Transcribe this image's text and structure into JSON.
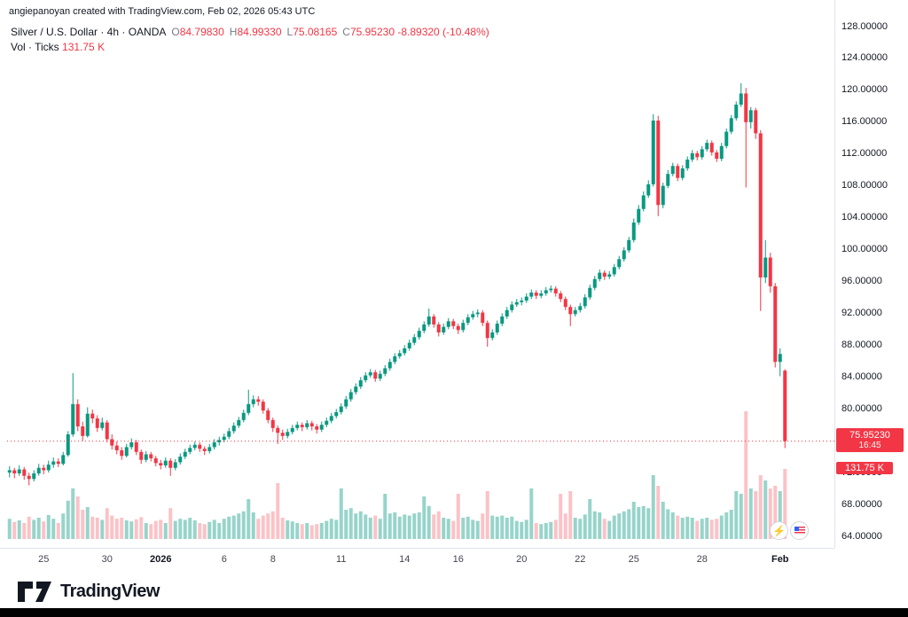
{
  "attribution": "angiepanoyan created with TradingView.com, Feb 02, 2026 05:43 UTC",
  "legend": {
    "symbol": "Silver / U.S. Dollar · 4h · OANDA",
    "ohlc": {
      "o_label": "O",
      "o": "84.79830",
      "h_label": "H",
      "h": "84.99330",
      "l_label": "L",
      "l": "75.08165",
      "c_label": "C",
      "c": "75.95230",
      "change": "-8.89320 (-10.48%)"
    },
    "volume_label": "Vol · Ticks",
    "volume_value": "131.75 K"
  },
  "price_badge": {
    "price": "75.95230",
    "countdown": "16:45"
  },
  "volume_badge": "131.75 K",
  "footer": {
    "brand": "TradingView"
  },
  "colors": {
    "up": "#089981",
    "down": "#f23645",
    "vol_up": "rgba(8,153,129,0.42)",
    "vol_down": "rgba(242,54,69,0.30)",
    "accent_red": "#f23645"
  },
  "price_scale": {
    "labels": [
      {
        "text": "128.00000",
        "value": 128
      },
      {
        "text": "124.00000",
        "value": 124
      },
      {
        "text": "120.00000",
        "value": 120
      },
      {
        "text": "116.00000",
        "value": 116
      },
      {
        "text": "112.00000",
        "value": 112
      },
      {
        "text": "108.00000",
        "value": 108
      },
      {
        "text": "104.00000",
        "value": 104
      },
      {
        "text": "100.00000",
        "value": 100
      },
      {
        "text": "96.00000",
        "value": 96
      },
      {
        "text": "92.00000",
        "value": 92
      },
      {
        "text": "88.00000",
        "value": 88
      },
      {
        "text": "84.00000",
        "value": 84
      },
      {
        "text": "80.00000",
        "value": 80
      },
      {
        "text": "76.00000",
        "value": 76
      },
      {
        "text": "72.00000",
        "value": 72
      },
      {
        "text": "68.00000",
        "value": 68
      },
      {
        "text": "64.00000",
        "value": 64
      }
    ]
  },
  "time_axis": {
    "labels": [
      {
        "t": "25",
        "i": 7,
        "major": false
      },
      {
        "t": "30",
        "i": 20,
        "major": false
      },
      {
        "t": "2026",
        "i": 31,
        "major": true
      },
      {
        "t": "6",
        "i": 44,
        "major": false
      },
      {
        "t": "8",
        "i": 54,
        "major": false
      },
      {
        "t": "11",
        "i": 68,
        "major": false
      },
      {
        "t": "14",
        "i": 81,
        "major": false
      },
      {
        "t": "16",
        "i": 92,
        "major": false
      },
      {
        "t": "20",
        "i": 105,
        "major": false
      },
      {
        "t": "22",
        "i": 117,
        "major": false
      },
      {
        "t": "25",
        "i": 128,
        "major": false
      },
      {
        "t": "28",
        "i": 142,
        "major": false
      },
      {
        "t": "Feb",
        "i": 158,
        "major": true
      }
    ]
  },
  "chart_data": {
    "type": "candlestick",
    "title": "Silver / U.S. Dollar · 4h · OANDA",
    "y_range": [
      64,
      128
    ],
    "y_step": 4,
    "grid": false,
    "volume_pane": true,
    "volume_max_k": 250,
    "last_close": 75.9523,
    "dotted_line_price": 75.9523,
    "last_candle": {
      "o": 84.7983,
      "h": 84.9933,
      "l": 75.08165,
      "c": 75.9523,
      "change": -8.8932,
      "change_pct": -10.48,
      "volume_k": 131.75
    },
    "candles": [
      [
        72.0,
        72.8,
        71.4,
        72.3,
        38
      ],
      [
        72.3,
        72.6,
        71.3,
        71.9,
        32
      ],
      [
        71.9,
        72.9,
        71.6,
        72.4,
        35
      ],
      [
        72.4,
        72.7,
        71.1,
        71.6,
        30
      ],
      [
        71.6,
        72.0,
        70.4,
        71.2,
        42
      ],
      [
        71.2,
        72.3,
        70.9,
        71.9,
        36
      ],
      [
        71.9,
        73.1,
        71.6,
        72.6,
        40
      ],
      [
        72.6,
        73.0,
        71.8,
        72.3,
        33
      ],
      [
        72.3,
        73.5,
        72.0,
        73.0,
        45
      ],
      [
        73.0,
        73.9,
        72.6,
        73.4,
        38
      ],
      [
        73.4,
        73.8,
        72.7,
        73.1,
        30
      ],
      [
        73.1,
        74.6,
        72.9,
        74.2,
        48
      ],
      [
        74.2,
        77.2,
        74.0,
        76.8,
        72
      ],
      [
        76.8,
        84.5,
        76.5,
        80.6,
        95
      ],
      [
        80.6,
        81.2,
        77.2,
        77.8,
        80
      ],
      [
        77.8,
        78.4,
        76.0,
        76.6,
        55
      ],
      [
        76.6,
        80.2,
        76.4,
        79.4,
        60
      ],
      [
        79.4,
        79.9,
        78.2,
        78.8,
        42
      ],
      [
        78.8,
        79.2,
        77.1,
        77.6,
        40
      ],
      [
        77.6,
        78.9,
        77.3,
        78.3,
        36
      ],
      [
        78.3,
        78.6,
        75.8,
        76.2,
        58
      ],
      [
        76.2,
        76.8,
        74.9,
        75.4,
        44
      ],
      [
        75.4,
        75.9,
        74.3,
        74.8,
        38
      ],
      [
        74.8,
        75.2,
        73.6,
        74.1,
        40
      ],
      [
        74.1,
        75.6,
        73.9,
        75.2,
        35
      ],
      [
        75.2,
        76.3,
        74.9,
        75.8,
        33
      ],
      [
        75.8,
        76.1,
        74.2,
        74.6,
        37
      ],
      [
        74.6,
        74.9,
        73.1,
        73.6,
        41
      ],
      [
        73.6,
        74.7,
        73.3,
        74.3,
        30
      ],
      [
        74.3,
        74.6,
        73.4,
        73.8,
        28
      ],
      [
        73.8,
        74.1,
        72.8,
        73.2,
        34
      ],
      [
        73.2,
        73.6,
        72.4,
        72.9,
        36
      ],
      [
        72.9,
        73.9,
        72.6,
        73.5,
        30
      ],
      [
        73.5,
        73.8,
        71.6,
        72.6,
        58
      ],
      [
        72.6,
        73.7,
        72.3,
        73.3,
        34
      ],
      [
        73.3,
        74.4,
        73.0,
        74.0,
        38
      ],
      [
        74.0,
        75.0,
        73.7,
        74.6,
        36
      ],
      [
        74.6,
        75.5,
        74.3,
        75.1,
        40
      ],
      [
        75.1,
        75.9,
        74.8,
        75.5,
        35
      ],
      [
        75.5,
        75.8,
        74.6,
        75.0,
        30
      ],
      [
        75.0,
        75.3,
        74.2,
        74.7,
        28
      ],
      [
        74.7,
        75.6,
        74.4,
        75.2,
        32
      ],
      [
        75.2,
        76.2,
        74.9,
        75.8,
        36
      ],
      [
        75.8,
        76.5,
        75.4,
        76.1,
        30
      ],
      [
        76.1,
        76.9,
        75.8,
        76.5,
        38
      ],
      [
        76.5,
        77.6,
        76.2,
        77.2,
        42
      ],
      [
        77.2,
        78.3,
        76.9,
        77.9,
        44
      ],
      [
        77.9,
        79.0,
        77.6,
        78.6,
        48
      ],
      [
        78.6,
        79.9,
        78.3,
        79.5,
        52
      ],
      [
        79.5,
        82.4,
        79.2,
        80.6,
        75
      ],
      [
        80.6,
        81.7,
        80.2,
        81.2,
        50
      ],
      [
        81.2,
        81.6,
        80.4,
        80.9,
        38
      ],
      [
        80.9,
        81.2,
        79.4,
        79.8,
        44
      ],
      [
        79.8,
        80.1,
        78.2,
        78.6,
        48
      ],
      [
        78.6,
        78.9,
        77.1,
        77.6,
        52
      ],
      [
        77.6,
        77.9,
        75.6,
        77.0,
        105
      ],
      [
        77.0,
        77.4,
        76.1,
        76.6,
        40
      ],
      [
        76.6,
        77.5,
        76.3,
        77.1,
        35
      ],
      [
        77.1,
        78.0,
        76.8,
        77.6,
        33
      ],
      [
        77.6,
        78.4,
        77.3,
        78.0,
        30
      ],
      [
        78.0,
        78.3,
        77.2,
        77.7,
        28
      ],
      [
        77.7,
        78.6,
        77.4,
        78.2,
        30
      ],
      [
        78.2,
        78.5,
        77.3,
        77.8,
        26
      ],
      [
        77.8,
        78.1,
        76.9,
        77.4,
        28
      ],
      [
        77.4,
        78.4,
        77.1,
        78.0,
        30
      ],
      [
        78.0,
        78.9,
        77.7,
        78.5,
        34
      ],
      [
        78.5,
        79.5,
        78.2,
        79.1,
        38
      ],
      [
        79.1,
        80.0,
        78.8,
        79.6,
        36
      ],
      [
        79.6,
        80.7,
        79.3,
        80.3,
        95
      ],
      [
        80.3,
        81.6,
        80.0,
        81.2,
        55
      ],
      [
        81.2,
        82.5,
        80.9,
        82.1,
        58
      ],
      [
        82.1,
        83.2,
        81.8,
        82.8,
        48
      ],
      [
        82.8,
        84.0,
        82.5,
        83.6,
        52
      ],
      [
        83.6,
        84.6,
        83.3,
        84.2,
        46
      ],
      [
        84.2,
        85.0,
        83.9,
        84.6,
        40
      ],
      [
        84.6,
        84.9,
        83.4,
        83.8,
        44
      ],
      [
        83.8,
        84.8,
        83.5,
        84.4,
        38
      ],
      [
        84.4,
        85.5,
        84.1,
        85.1,
        85
      ],
      [
        85.1,
        86.3,
        84.8,
        85.9,
        48
      ],
      [
        85.9,
        87.0,
        85.6,
        86.6,
        50
      ],
      [
        86.6,
        87.4,
        86.3,
        87.0,
        42
      ],
      [
        87.0,
        88.0,
        86.7,
        87.6,
        46
      ],
      [
        87.6,
        88.7,
        87.3,
        88.3,
        44
      ],
      [
        88.3,
        89.4,
        88.0,
        89.0,
        48
      ],
      [
        89.0,
        90.2,
        88.7,
        89.8,
        50
      ],
      [
        89.8,
        91.0,
        89.5,
        90.6,
        80
      ],
      [
        90.6,
        92.6,
        90.3,
        91.6,
        62
      ],
      [
        91.6,
        91.9,
        90.2,
        90.6,
        46
      ],
      [
        90.6,
        90.9,
        89.1,
        89.6,
        52
      ],
      [
        89.6,
        90.7,
        89.3,
        90.3,
        40
      ],
      [
        90.3,
        91.4,
        90.0,
        91.0,
        38
      ],
      [
        91.0,
        91.3,
        90.0,
        90.4,
        34
      ],
      [
        90.4,
        90.7,
        89.4,
        89.9,
        85
      ],
      [
        89.9,
        91.2,
        89.6,
        90.8,
        40
      ],
      [
        90.8,
        91.9,
        90.5,
        91.5,
        42
      ],
      [
        91.5,
        92.3,
        91.2,
        91.9,
        36
      ],
      [
        91.9,
        92.5,
        91.5,
        92.1,
        34
      ],
      [
        92.1,
        92.4,
        90.4,
        90.8,
        48
      ],
      [
        90.8,
        91.1,
        87.8,
        88.9,
        90
      ],
      [
        88.9,
        90.0,
        88.6,
        89.6,
        44
      ],
      [
        89.6,
        91.1,
        89.3,
        90.7,
        42
      ],
      [
        90.7,
        92.0,
        90.4,
        91.6,
        44
      ],
      [
        91.6,
        92.8,
        91.3,
        92.4,
        40
      ],
      [
        92.4,
        93.5,
        92.1,
        93.1,
        42
      ],
      [
        93.1,
        93.8,
        92.8,
        93.4,
        34
      ],
      [
        93.4,
        94.0,
        93.0,
        93.6,
        32
      ],
      [
        93.6,
        94.5,
        93.3,
        94.1,
        36
      ],
      [
        94.1,
        95.0,
        93.8,
        94.6,
        95
      ],
      [
        94.6,
        94.9,
        93.8,
        94.2,
        30
      ],
      [
        94.2,
        94.9,
        93.9,
        94.5,
        28
      ],
      [
        94.5,
        95.3,
        94.2,
        94.9,
        30
      ],
      [
        94.9,
        95.5,
        94.6,
        95.1,
        32
      ],
      [
        95.1,
        95.4,
        94.1,
        94.5,
        36
      ],
      [
        94.5,
        94.8,
        93.4,
        93.8,
        85
      ],
      [
        93.8,
        94.1,
        92.4,
        92.8,
        48
      ],
      [
        92.8,
        93.1,
        90.4,
        91.9,
        90
      ],
      [
        91.9,
        92.8,
        91.6,
        92.4,
        40
      ],
      [
        92.4,
        93.3,
        92.1,
        92.9,
        38
      ],
      [
        92.9,
        94.4,
        92.6,
        94.0,
        46
      ],
      [
        94.0,
        95.6,
        93.7,
        95.2,
        75
      ],
      [
        95.2,
        96.7,
        94.9,
        96.3,
        52
      ],
      [
        96.3,
        97.5,
        96.0,
        97.1,
        50
      ],
      [
        97.1,
        97.4,
        96.2,
        96.6,
        38
      ],
      [
        96.6,
        97.3,
        96.3,
        96.9,
        34
      ],
      [
        96.9,
        98.2,
        96.6,
        97.8,
        44
      ],
      [
        97.8,
        99.2,
        97.5,
        98.8,
        48
      ],
      [
        98.8,
        100.3,
        98.5,
        99.9,
        52
      ],
      [
        99.9,
        101.6,
        99.6,
        101.2,
        56
      ],
      [
        101.2,
        103.9,
        100.9,
        103.4,
        70
      ],
      [
        103.4,
        105.6,
        103.1,
        105.1,
        60
      ],
      [
        105.1,
        107.3,
        104.8,
        106.8,
        62
      ],
      [
        106.8,
        108.7,
        106.5,
        108.2,
        58
      ],
      [
        108.2,
        117.0,
        107.9,
        116.2,
        120
      ],
      [
        116.2,
        116.8,
        104.2,
        105.6,
        100
      ],
      [
        105.6,
        108.4,
        105.2,
        108.0,
        70
      ],
      [
        108.0,
        110.0,
        107.7,
        109.5,
        56
      ],
      [
        109.5,
        110.9,
        109.2,
        110.5,
        50
      ],
      [
        110.5,
        110.8,
        108.6,
        109.0,
        44
      ],
      [
        109.0,
        110.6,
        108.7,
        110.2,
        40
      ],
      [
        110.2,
        111.7,
        109.9,
        111.3,
        42
      ],
      [
        111.3,
        112.5,
        111.0,
        112.1,
        40
      ],
      [
        112.1,
        112.4,
        111.2,
        111.6,
        34
      ],
      [
        111.6,
        113.0,
        111.3,
        112.6,
        38
      ],
      [
        112.6,
        113.8,
        112.3,
        113.4,
        40
      ],
      [
        113.4,
        113.7,
        111.8,
        112.2,
        36
      ],
      [
        112.2,
        112.5,
        111.0,
        111.4,
        38
      ],
      [
        111.4,
        113.4,
        111.1,
        113.0,
        44
      ],
      [
        113.0,
        115.2,
        112.7,
        114.8,
        50
      ],
      [
        114.8,
        116.9,
        114.5,
        116.5,
        55
      ],
      [
        116.5,
        118.6,
        116.2,
        118.2,
        90
      ],
      [
        118.2,
        120.9,
        117.9,
        119.6,
        85
      ],
      [
        119.6,
        120.3,
        107.8,
        116.0,
        240
      ],
      [
        116.0,
        117.9,
        115.2,
        117.5,
        95
      ],
      [
        117.5,
        117.8,
        113.9,
        114.6,
        90
      ],
      [
        114.6,
        115.0,
        92.3,
        96.5,
        120
      ],
      [
        96.5,
        101.2,
        95.8,
        99.0,
        110
      ],
      [
        99.0,
        99.6,
        94.6,
        95.4,
        95
      ],
      [
        95.4,
        95.8,
        85.2,
        85.9,
        100
      ],
      [
        85.9,
        87.6,
        84.1,
        86.9,
        90
      ],
      [
        84.7983,
        84.9933,
        75.08165,
        75.9523,
        131.75
      ]
    ]
  }
}
